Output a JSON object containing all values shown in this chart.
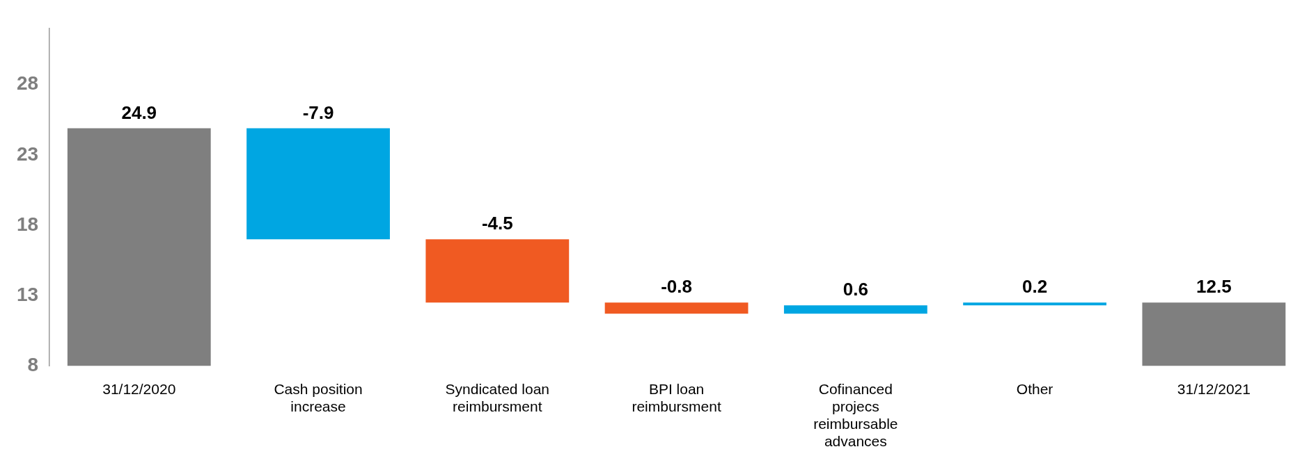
{
  "chart_data": {
    "type": "bar",
    "categories": [
      "31/12/2020",
      "Cash position increase",
      "Syndicated loan reimbursment",
      "BPI loan reimbursment",
      "Cofinanced projecs reimbursable advances",
      "Other",
      "31/12/2021"
    ],
    "values": [
      24.9,
      -7.9,
      -4.5,
      -0.8,
      0.6,
      0.2,
      12.5
    ],
    "base": [
      null,
      24.9,
      17.0,
      12.5,
      11.7,
      12.3,
      null
    ],
    "colors": [
      "#7f7f7f",
      "#00a6e2",
      "#f05a22",
      "#f05a22",
      "#00a6e2",
      "#00a6e2",
      "#7f7f7f"
    ],
    "ylim": [
      8,
      32
    ],
    "yticks": [
      8,
      13,
      18,
      23,
      28
    ],
    "data_labels": true,
    "grid": false,
    "legend": false
  }
}
